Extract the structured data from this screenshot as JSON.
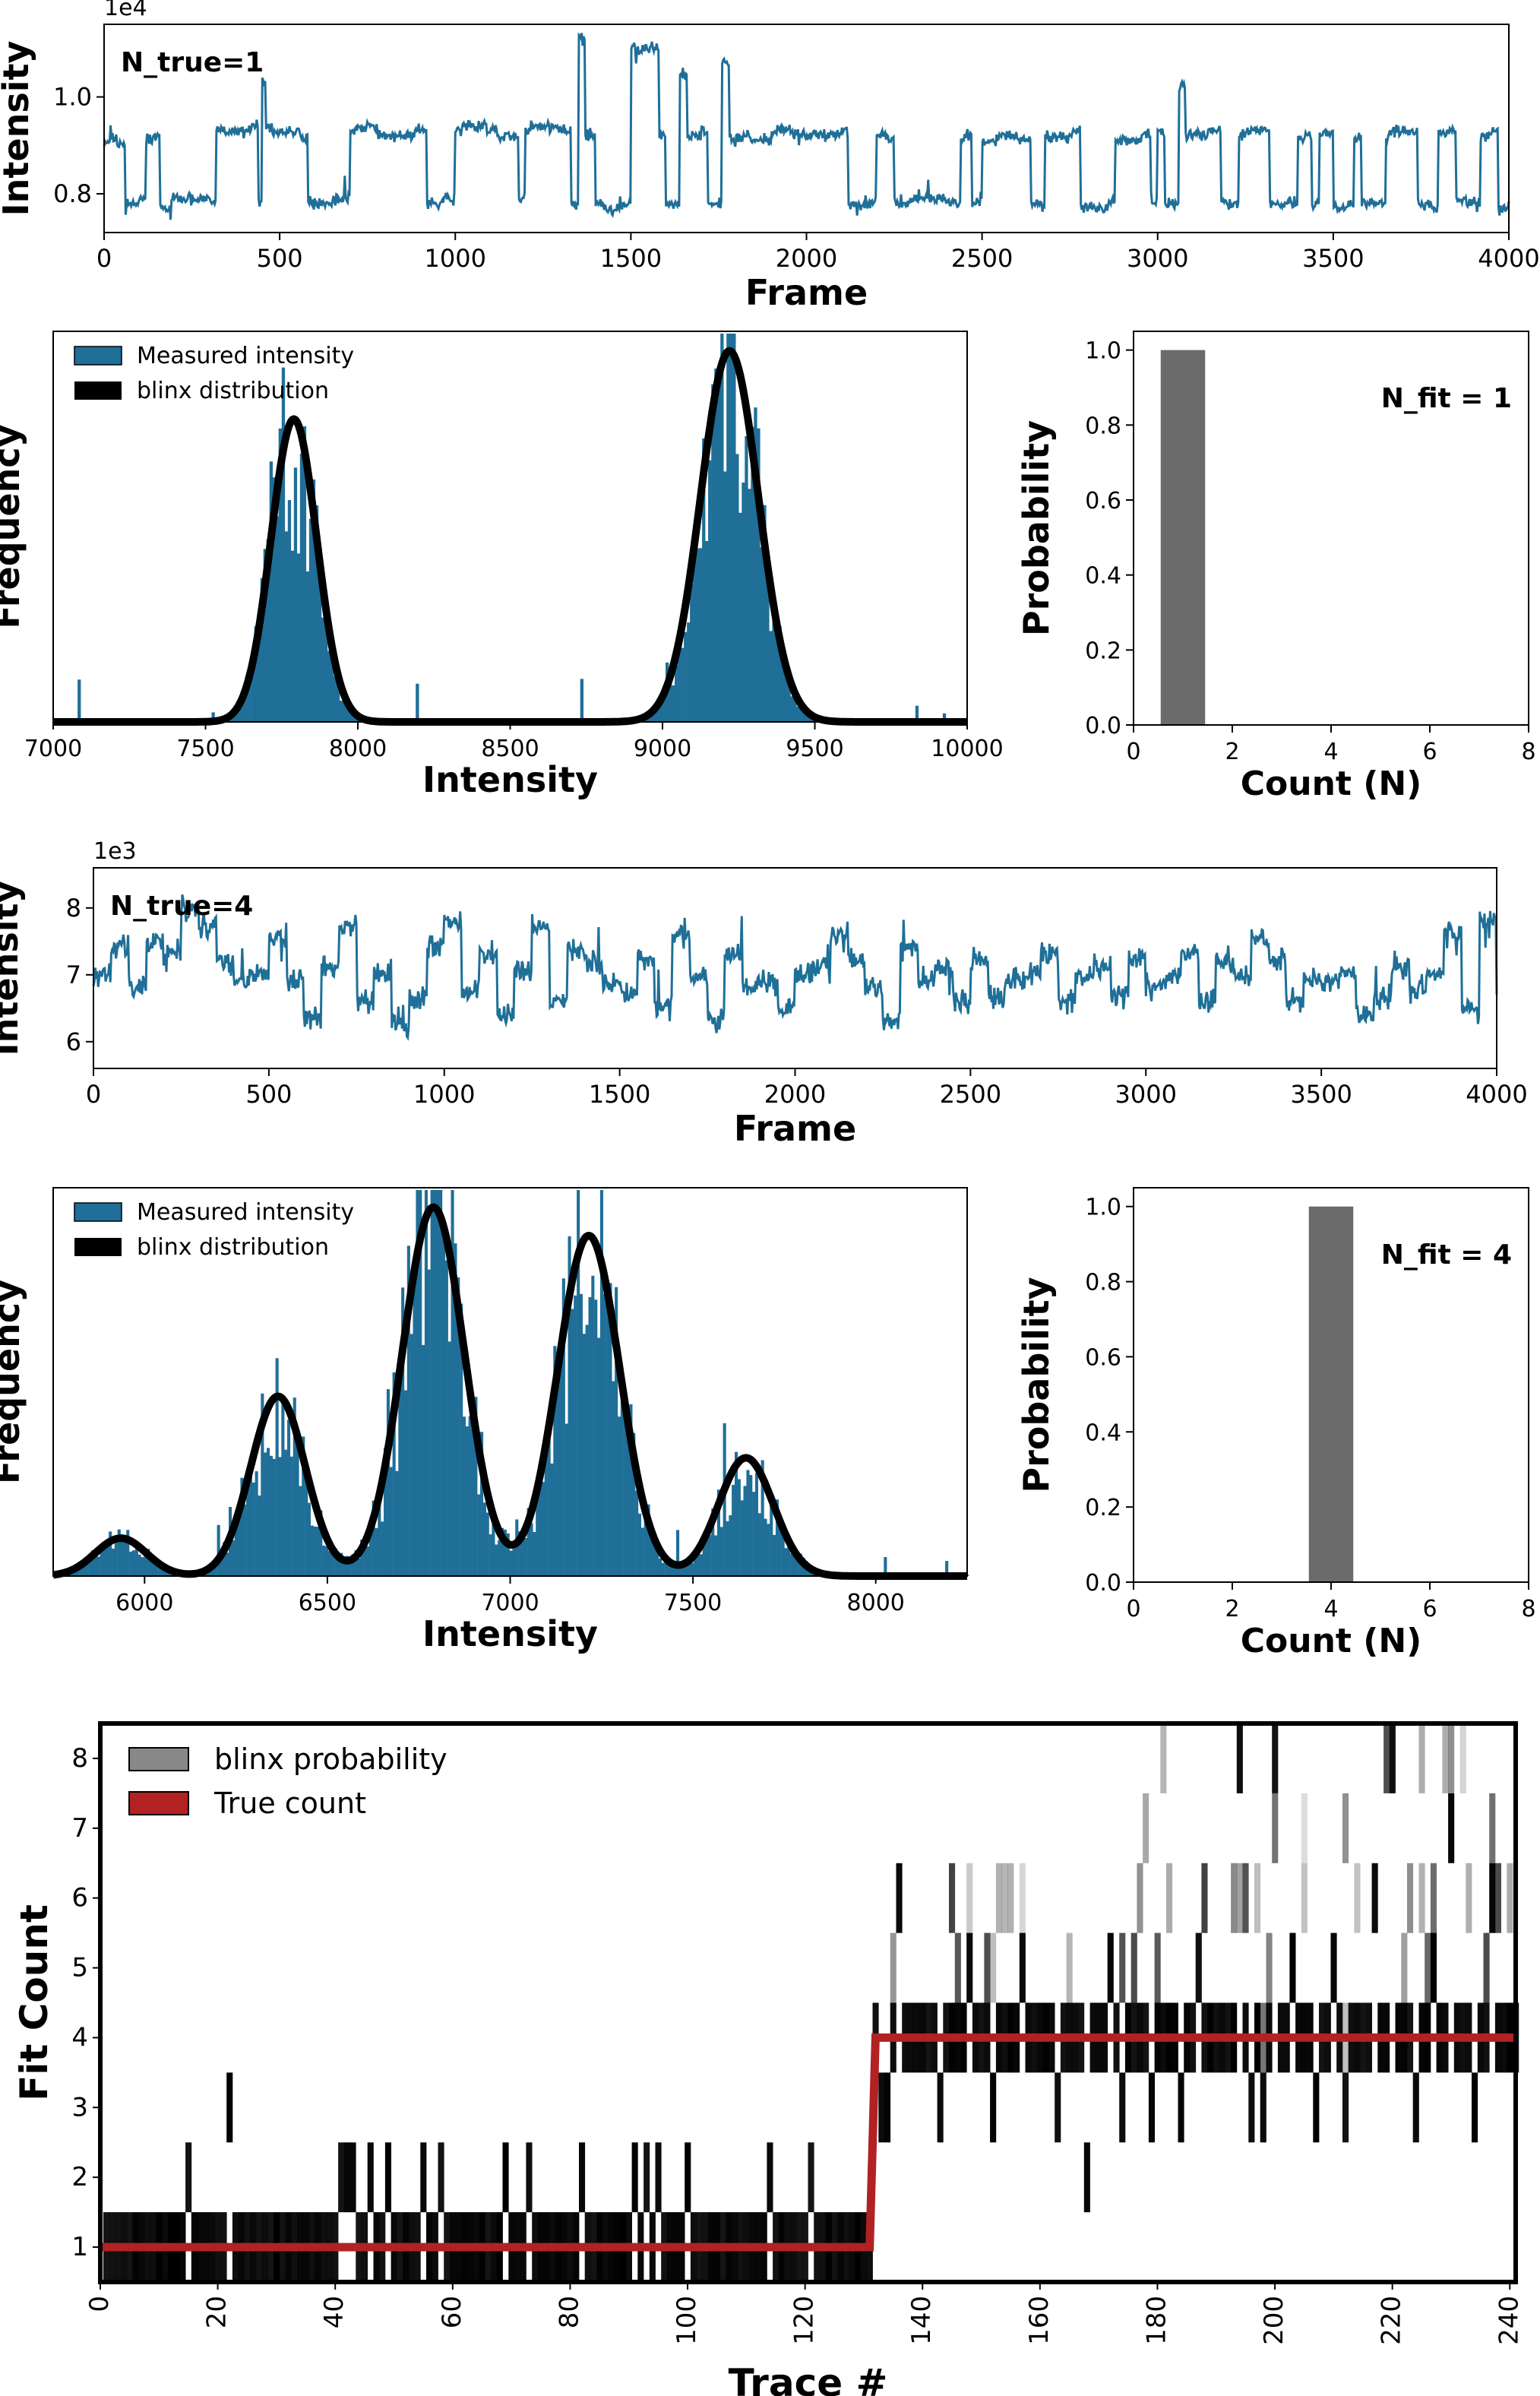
{
  "colors": {
    "trace": "#1f6f98",
    "hist": "#1f6f98",
    "fit": "#000000",
    "prob_bar": "#6b6b6b",
    "true_count": "#b22222"
  },
  "chart_data": [
    {
      "id": "trace1",
      "type": "line",
      "annotation": "N_true=1",
      "xlabel": "Frame",
      "ylabel": "Intensity",
      "offset_label": "1e4",
      "xlim": [
        0,
        4000
      ],
      "ylim": [
        0.72,
        1.15
      ],
      "xticks": [
        0,
        500,
        1000,
        1500,
        2000,
        2500,
        3000,
        3500,
        4000
      ],
      "yticks": [
        0.8,
        1.0
      ],
      "ytick_labels": [
        "0.8",
        "1.0"
      ],
      "x": [
        0,
        40,
        60,
        100,
        120,
        140,
        160,
        190,
        300,
        320,
        420,
        440,
        450,
        460,
        480,
        560,
        580,
        650,
        700,
        720,
        780,
        880,
        920,
        960,
        1000,
        1020,
        1090,
        1120,
        1180,
        1200,
        1220,
        1300,
        1330,
        1350,
        1370,
        1400,
        1420,
        1480,
        1500,
        1580,
        1600,
        1640,
        1660,
        1700,
        1720,
        1760,
        1780,
        1800,
        1840,
        1900,
        1960,
        2100,
        2120,
        2200,
        2230,
        2250,
        2300,
        2400,
        2440,
        2470,
        2500,
        2540,
        2600,
        2640,
        2680,
        2760,
        2780,
        2860,
        2880,
        2950,
        2980,
        3000,
        3020,
        3060,
        3080,
        3140,
        3180,
        3230,
        3250,
        3320,
        3400,
        3440,
        3460,
        3500,
        3540,
        3560,
        3580,
        3650,
        3660,
        3740,
        3780,
        3800,
        3850,
        3880,
        3920,
        3950,
        3970,
        4000
      ],
      "y": [
        0.91,
        0.9,
        0.78,
        0.79,
        0.91,
        0.92,
        0.77,
        0.79,
        0.78,
        0.93,
        0.94,
        0.78,
        1.03,
        0.94,
        0.93,
        0.92,
        0.78,
        0.79,
        0.93,
        0.94,
        0.92,
        0.93,
        0.78,
        0.79,
        0.93,
        0.94,
        0.93,
        0.92,
        0.79,
        0.93,
        0.94,
        0.93,
        0.78,
        1.12,
        0.92,
        0.78,
        0.77,
        0.78,
        1.1,
        0.92,
        0.78,
        1.05,
        0.92,
        0.93,
        0.78,
        1.07,
        0.91,
        0.92,
        0.91,
        0.93,
        0.92,
        0.93,
        0.78,
        0.92,
        0.91,
        0.78,
        0.79,
        0.78,
        0.92,
        0.78,
        0.91,
        0.92,
        0.91,
        0.78,
        0.92,
        0.93,
        0.77,
        0.78,
        0.91,
        0.92,
        0.78,
        0.93,
        0.78,
        1.02,
        0.92,
        0.93,
        0.78,
        0.92,
        0.93,
        0.78,
        0.92,
        0.78,
        0.92,
        0.77,
        0.78,
        0.91,
        0.78,
        0.92,
        0.93,
        0.78,
        0.77,
        0.93,
        0.79,
        0.78,
        0.92,
        0.93,
        0.77,
        0.77
      ]
    },
    {
      "id": "hist1",
      "type": "bar",
      "xlabel": "Intensity",
      "ylabel": "Frequency",
      "xlim": [
        7000,
        10000
      ],
      "xticks": [
        7000,
        7500,
        8000,
        8500,
        9000,
        9500,
        10000
      ],
      "legend": [
        "Measured intensity",
        "blinx distribution"
      ],
      "fit_peaks": [
        {
          "mean": 7790,
          "sd": 75,
          "height": 0.8
        },
        {
          "mean": 9220,
          "sd": 95,
          "height": 0.98
        }
      ]
    },
    {
      "id": "prob1",
      "type": "bar",
      "annotation": "N_fit = 1",
      "xlabel": "Count (N)",
      "ylabel": "Probability",
      "xlim": [
        0,
        8
      ],
      "ylim": [
        0,
        1.05
      ],
      "xticks": [
        0,
        2,
        4,
        6,
        8
      ],
      "yticks": [
        0.0,
        0.2,
        0.4,
        0.6,
        0.8,
        1.0
      ],
      "ytick_labels": [
        "0.0",
        "0.2",
        "0.4",
        "0.6",
        "0.8",
        "1.0"
      ],
      "categories": [
        1
      ],
      "values": [
        1.0
      ]
    },
    {
      "id": "trace4",
      "type": "line",
      "annotation": "N_true=4",
      "xlabel": "Frame",
      "ylabel": "Intensity",
      "offset_label": "1e3",
      "xlim": [
        0,
        4000
      ],
      "ylim": [
        5.6,
        8.6
      ],
      "xticks": [
        0,
        500,
        1000,
        1500,
        2000,
        2500,
        3000,
        3500,
        4000
      ],
      "yticks": [
        6,
        7,
        8
      ],
      "ytick_labels": [
        "6",
        "7",
        "8"
      ],
      "x": [
        0,
        50,
        100,
        150,
        200,
        250,
        300,
        350,
        400,
        450,
        500,
        550,
        600,
        650,
        700,
        750,
        800,
        850,
        880,
        900,
        950,
        1000,
        1050,
        1100,
        1150,
        1200,
        1250,
        1300,
        1350,
        1400,
        1450,
        1500,
        1550,
        1600,
        1650,
        1700,
        1750,
        1800,
        1850,
        1900,
        1950,
        2000,
        2050,
        2100,
        2150,
        2200,
        2250,
        2300,
        2350,
        2400,
        2450,
        2500,
        2550,
        2600,
        2650,
        2700,
        2750,
        2800,
        2850,
        2900,
        2950,
        3000,
        3050,
        3100,
        3150,
        3200,
        3250,
        3300,
        3350,
        3400,
        3450,
        3500,
        3550,
        3600,
        3650,
        3700,
        3750,
        3800,
        3850,
        3900,
        3950,
        4000
      ],
      "y": [
        7.0,
        7.4,
        6.8,
        7.5,
        7.3,
        8.0,
        7.7,
        7.2,
        6.9,
        7.0,
        7.6,
        6.9,
        6.4,
        7.1,
        7.7,
        6.6,
        7.0,
        6.3,
        6.2,
        6.6,
        7.4,
        7.8,
        6.7,
        7.3,
        6.4,
        7.1,
        7.7,
        6.6,
        7.4,
        7.2,
        6.9,
        6.7,
        7.2,
        6.5,
        7.6,
        7.0,
        6.3,
        7.3,
        6.8,
        6.9,
        6.5,
        7.0,
        7.1,
        7.6,
        7.2,
        6.8,
        6.3,
        7.4,
        6.9,
        7.1,
        6.6,
        7.2,
        6.7,
        6.9,
        7.0,
        7.3,
        6.6,
        7.0,
        7.1,
        6.7,
        7.2,
        6.8,
        7.0,
        7.3,
        6.6,
        7.2,
        7.0,
        7.5,
        7.2,
        6.6,
        6.9,
        6.9,
        7.0,
        6.4,
        6.7,
        7.1,
        6.8,
        7.0,
        7.6,
        6.5,
        7.8,
        6.7
      ]
    },
    {
      "id": "hist4",
      "type": "bar",
      "xlabel": "Intensity",
      "ylabel": "Frequency",
      "xlim": [
        5750,
        8250
      ],
      "xticks": [
        6000,
        6500,
        7000,
        7500,
        8000
      ],
      "legend": [
        "Measured intensity",
        "blinx distribution"
      ],
      "fit_peaks": [
        {
          "mean": 5935,
          "sd": 70,
          "height": 0.08
        },
        {
          "mean": 6365,
          "sd": 75,
          "height": 0.38
        },
        {
          "mean": 6790,
          "sd": 85,
          "height": 0.78
        },
        {
          "mean": 7215,
          "sd": 85,
          "height": 0.72
        },
        {
          "mean": 7645,
          "sd": 75,
          "height": 0.25
        }
      ]
    },
    {
      "id": "prob4",
      "type": "bar",
      "annotation": "N_fit = 4",
      "xlabel": "Count (N)",
      "ylabel": "Probability",
      "xlim": [
        0,
        8
      ],
      "ylim": [
        0,
        1.05
      ],
      "xticks": [
        0,
        2,
        4,
        6,
        8
      ],
      "yticks": [
        0.0,
        0.2,
        0.4,
        0.6,
        0.8,
        1.0
      ],
      "ytick_labels": [
        "0.0",
        "0.2",
        "0.4",
        "0.6",
        "0.8",
        "1.0"
      ],
      "categories": [
        4
      ],
      "values": [
        1.0
      ]
    },
    {
      "id": "heatmap",
      "type": "heatmap",
      "xlabel": "Trace #",
      "ylabel": "Fit Count",
      "xlim": [
        0,
        241
      ],
      "ylim": [
        0.5,
        8.5
      ],
      "xticks": [
        0,
        20,
        40,
        60,
        80,
        100,
        120,
        140,
        160,
        180,
        200,
        220,
        240
      ],
      "yticks": [
        1,
        2,
        3,
        4,
        5,
        6,
        7,
        8
      ],
      "legend": [
        "blinx probability",
        "True count"
      ],
      "true_count": {
        "x": [
          0,
          131,
          132,
          241
        ],
        "y": [
          1,
          1,
          4,
          4
        ]
      },
      "fit_counts_1_to_131": [
        1,
        1,
        1,
        1,
        1,
        1,
        1,
        1,
        1,
        1,
        1,
        1,
        1,
        1,
        2,
        1,
        1,
        1,
        1,
        1,
        1,
        3,
        1,
        1,
        1,
        1,
        1,
        1,
        1,
        1,
        1,
        1,
        1,
        1,
        1,
        1,
        1,
        1,
        1,
        1,
        2,
        2,
        2,
        1,
        1,
        2,
        1,
        1,
        2,
        1,
        1,
        1,
        1,
        1,
        2,
        1,
        1,
        2,
        1,
        1,
        1,
        1,
        1,
        1,
        1,
        1,
        1,
        1,
        2,
        1,
        1,
        1,
        2,
        1,
        1,
        1,
        1,
        1,
        1,
        1,
        1,
        2,
        1,
        1,
        1,
        1,
        1,
        1,
        1,
        1,
        2,
        1,
        2,
        1,
        2,
        1,
        1,
        1,
        1,
        2,
        1,
        1,
        1,
        1,
        1,
        1,
        1,
        1,
        1,
        1,
        1,
        1,
        1,
        2,
        1,
        1,
        1,
        1,
        1,
        1,
        2,
        1,
        1,
        1,
        1,
        1,
        1,
        1,
        1,
        1,
        1
      ],
      "fit_counts_132_to_241": [
        4,
        3,
        3,
        4,
        6,
        4,
        4,
        4,
        4,
        4,
        4,
        3,
        4,
        4,
        4,
        4,
        5,
        4,
        4,
        4,
        3,
        4,
        4,
        4,
        4,
        5,
        4,
        4,
        4,
        4,
        4,
        3,
        4,
        4,
        4,
        4,
        2,
        4,
        4,
        4,
        5,
        4,
        3,
        4,
        4,
        4,
        4,
        3,
        4,
        4,
        4,
        4,
        3,
        4,
        4,
        5,
        4,
        4,
        4,
        4,
        4,
        4,
        8,
        4,
        3,
        4,
        3,
        4,
        8,
        4,
        4,
        5,
        4,
        4,
        4,
        3,
        4,
        4,
        5,
        4,
        3,
        4,
        4,
        4,
        4,
        6,
        4,
        4,
        8,
        4,
        4,
        4,
        3,
        4,
        4,
        5,
        4,
        4,
        7,
        4,
        4,
        4,
        3,
        4,
        4,
        6,
        4,
        4,
        4,
        4
      ]
    }
  ]
}
